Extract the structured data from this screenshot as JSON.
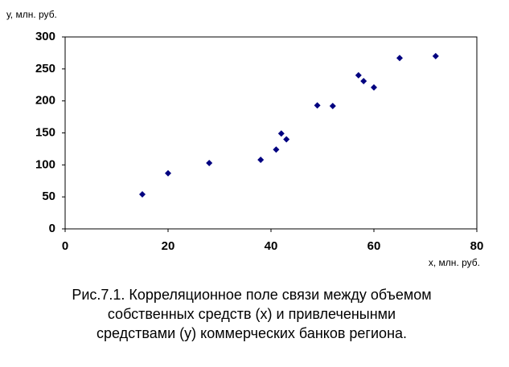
{
  "chart_data": {
    "type": "scatter",
    "y_label": "у, млн. руб.",
    "x_label": "х, млн. руб.",
    "caption": [
      "Рис.7.1. Корреляционное поле связи между объемом",
      "собственных средств (х) и привлеченынми",
      "средствами (у) коммерческих банков региона."
    ],
    "x": [
      15,
      20,
      28,
      38,
      41,
      42,
      43,
      49,
      52,
      57,
      58,
      60,
      65,
      72
    ],
    "values": [
      54,
      87,
      103,
      108,
      124,
      149,
      140,
      193,
      192,
      240,
      231,
      221,
      267,
      270
    ],
    "color": "#000080",
    "xlim": [
      0,
      80
    ],
    "xticks": [
      0,
      20,
      40,
      60,
      80
    ],
    "ylim": [
      0,
      300
    ],
    "yticks": [
      0,
      50,
      100,
      150,
      200,
      250,
      300
    ],
    "grid": false
  }
}
